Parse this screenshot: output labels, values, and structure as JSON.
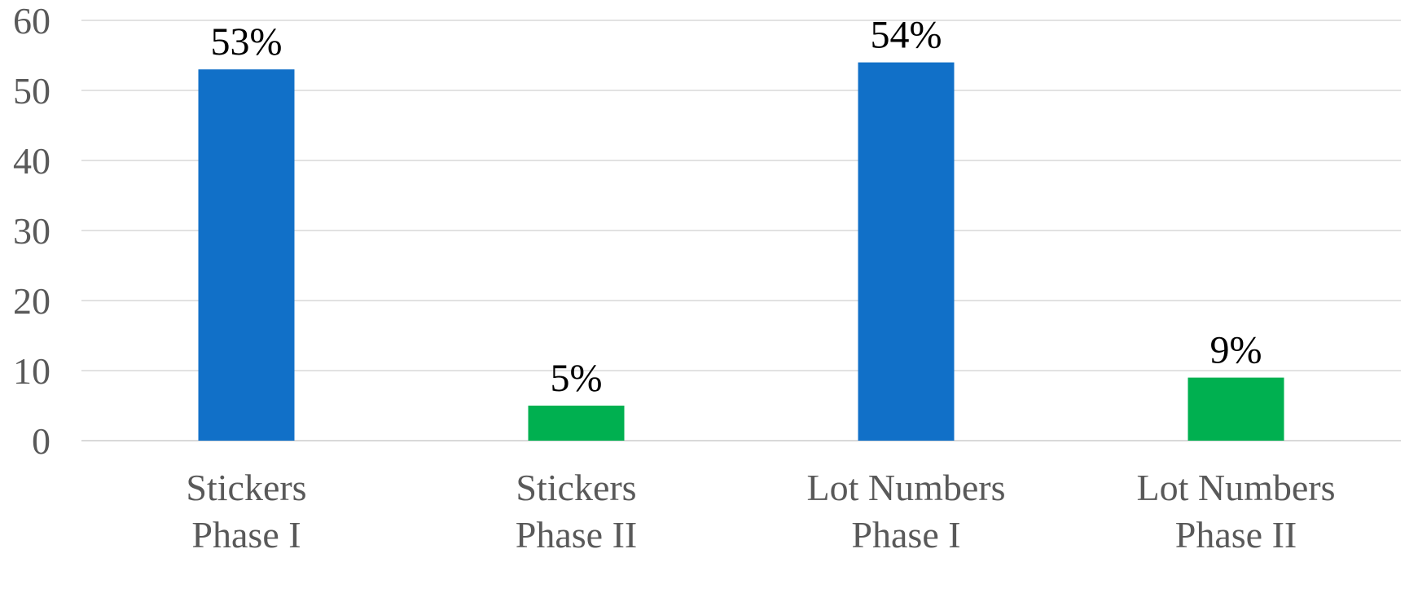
{
  "chart_data": {
    "type": "bar",
    "categories": [
      [
        "Stickers",
        "Phase I"
      ],
      [
        "Stickers",
        "Phase II"
      ],
      [
        "Lot Numbers",
        "Phase I"
      ],
      [
        "Lot Numbers",
        "Phase II"
      ]
    ],
    "values": [
      53,
      5,
      54,
      9
    ],
    "data_labels": [
      "53%",
      "5%",
      "54%",
      "9%"
    ],
    "bar_colors": [
      "#1170C8",
      "#00B050",
      "#1170C8",
      "#00B050"
    ],
    "yticks": [
      0,
      10,
      20,
      30,
      40,
      50,
      60
    ],
    "ylim": [
      0,
      60
    ],
    "grid": true,
    "legend": "none"
  }
}
